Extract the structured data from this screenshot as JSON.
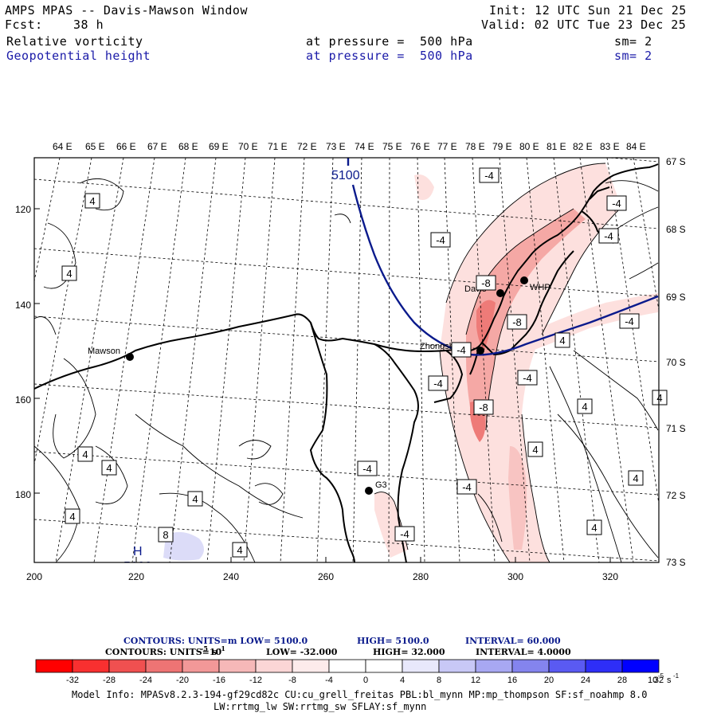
{
  "header": {
    "title": "AMPS MPAS -- Davis-Mawson Window",
    "fcst_label": "Fcst:",
    "fcst_value": "38 h",
    "init": "Init: 12 UTC Sun 21 Dec 25",
    "valid": "Valid: 02 UTC Tue 23 Dec 25",
    "field1": "Relative vorticity",
    "field1_level": "at pressure =  500 hPa",
    "field1_sm": "sm= 2",
    "field2": "Geopotential height",
    "field2_level": "at pressure =  500 hPa",
    "field2_sm": "sm= 2"
  },
  "map": {
    "top_lon_labels": [
      "64 E",
      "65 E",
      "66 E",
      "67 E",
      "68 E",
      "69 E",
      "70 E",
      "71 E",
      "72 E",
      "73 E",
      "74 E",
      "75 E",
      "76 E",
      "77 E",
      "78 E",
      "79 E",
      "80 E",
      "81 E",
      "82 E",
      "83 E",
      "84 E"
    ],
    "right_lat_labels": [
      "67 S",
      "68 S",
      "69 S",
      "70 S",
      "71 S",
      "72 S",
      "73 S"
    ],
    "left_y_labels": [
      "120",
      "140",
      "160",
      "180"
    ],
    "bottom_x_labels": [
      "200",
      "220",
      "240",
      "260",
      "280",
      "300",
      "320"
    ],
    "stations": [
      {
        "name": "Mawson"
      },
      {
        "name": "Davis"
      },
      {
        "name": "WHP"
      },
      {
        "name": "Zhongshan"
      },
      {
        "name": "G3"
      }
    ],
    "height_contour_label": "5100",
    "high_marker": "H",
    "high_value": "5100",
    "vorticity_labels": [
      "-4",
      "-4",
      "-4",
      "-4",
      "-8",
      "-8",
      "-8",
      "-4",
      "-4",
      "-4",
      "-4",
      "-4",
      "-4",
      "-4",
      "4",
      "4",
      "4",
      "4",
      "4",
      "4",
      "4",
      "4",
      "4",
      "4",
      "4",
      "4",
      "4",
      "8"
    ],
    "colors": {
      "height": "#0a1a8c",
      "coast": "#000000",
      "neg_light": "#fde0de",
      "neg_mid": "#f5a8a5",
      "neg_strong": "#ee7b78",
      "pos_light": "#dcdcf8"
    }
  },
  "legend": {
    "line1_contours": "CONTOURS:  UNITS=m  LOW=  5100.0",
    "line1_high": "HIGH=  5100.0",
    "line1_interval": "INTERVAL=   60.000",
    "line2_contours": "CONTOURS:  UNITS=10",
    "line2_exp": "-5",
    "line2_unit": "s",
    "line2_unit_exp": "-1",
    "line2_low": "LOW=  -32.000",
    "line2_high": "HIGH=  32.000",
    "line2_interval": "INTERVAL=   4.0000",
    "ticks": [
      "-32",
      "-28",
      "-24",
      "-20",
      "-16",
      "-12",
      "-8",
      "-4",
      "0",
      "4",
      "8",
      "12",
      "16",
      "20",
      "24",
      "28",
      "32"
    ],
    "unit_label": "10",
    "unit_exp": "-5",
    "unit_s": "s",
    "unit_s_exp": "-1",
    "bin_colors": [
      "#ff0000",
      "#f83030",
      "#f05050",
      "#ee7474",
      "#f29898",
      "#f6b8b8",
      "#fbd6d6",
      "#fdebeb",
      "#ffffff",
      "#ffffff",
      "#e8e8fb",
      "#c8c8f6",
      "#a8a8f2",
      "#8484ee",
      "#5a5af2",
      "#2e2ef7",
      "#0000ff"
    ]
  },
  "model_info": {
    "line1": "Model Info: MPASv8.2.3-194-gf29cd82c CU:cu_grell_freitas PBL:bl_mynn MP:mp_thompson SF:sf_noahmp 8.0",
    "line2": "LW:rrtmg_lw SW:rrtmg_sw SFLAY:sf_mynn"
  }
}
